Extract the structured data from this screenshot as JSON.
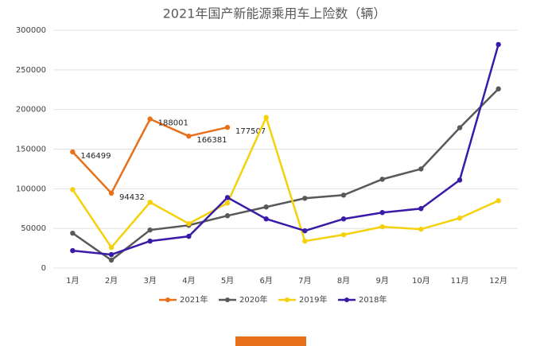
{
  "chart_data": {
    "type": "line",
    "title": "2021年国产新能源乘用车上险数（辆）",
    "categories": [
      "1月",
      "2月",
      "3月",
      "4月",
      "5月",
      "6月",
      "7月",
      "8月",
      "9月",
      "10月",
      "11月",
      "12月"
    ],
    "series": [
      {
        "name": "2021年",
        "color": "#e8701a",
        "values": [
          146499,
          94432,
          188001,
          166381,
          177507,
          null,
          null,
          null,
          null,
          null,
          null,
          null
        ],
        "data_labels": true
      },
      {
        "name": "2020年",
        "color": "#595959",
        "values": [
          44000,
          10000,
          48000,
          54000,
          66000,
          77000,
          88000,
          92000,
          112000,
          125000,
          177000,
          226000
        ]
      },
      {
        "name": "2019年",
        "color": "#f5d10a",
        "values": [
          99000,
          26000,
          83000,
          56000,
          82000,
          190000,
          34000,
          42000,
          52000,
          49000,
          63000,
          85000
        ]
      },
      {
        "name": "2018年",
        "color": "#3a1ba8",
        "values": [
          22000,
          17000,
          34000,
          40000,
          89000,
          62000,
          47000,
          62000,
          70000,
          75000,
          111000,
          282000
        ]
      }
    ],
    "ylim": [
      0,
      300000
    ],
    "yticks": [
      0,
      50000,
      100000,
      150000,
      200000,
      250000,
      300000
    ],
    "grid": true,
    "legend": "bottom"
  }
}
